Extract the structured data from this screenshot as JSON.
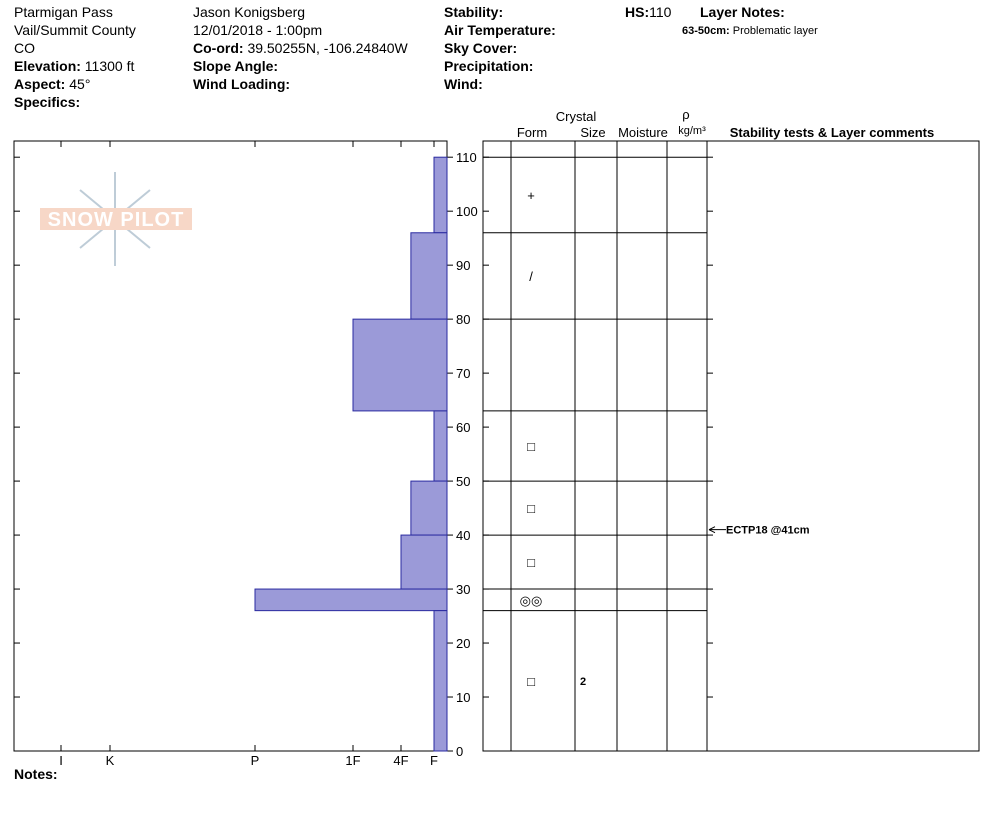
{
  "header": {
    "location": "Ptarmigan Pass",
    "area": "Vail/Summit County",
    "state": "CO",
    "elevation_label": "Elevation:",
    "elevation": "11300 ft",
    "aspect_label": "Aspect:",
    "aspect": "45°",
    "specifics_label": "Specifics:",
    "observer": "Jason Konigsberg",
    "datetime": "12/01/2018 - 1:00pm",
    "coord_label": "Co-ord:",
    "coord": "39.50255N, -106.24840W",
    "slope_label": "Slope Angle:",
    "wind_loading_label": "Wind Loading:",
    "stability_label": "Stability:",
    "air_temp_label": "Air Temperature:",
    "sky_label": "Sky Cover:",
    "precip_label": "Precipitation:",
    "wind_label": "Wind:",
    "hs_label": "HS:",
    "hs": 110,
    "layer_notes_label": "Layer Notes:",
    "layer_notes": [
      {
        "range": "63-50cm:",
        "text": "Problematic layer"
      }
    ]
  },
  "chart_data": {
    "type": "snow-profile",
    "xlim": [
      0,
      7
    ],
    "xticks": [
      {
        "value": 6,
        "label": "I"
      },
      {
        "value": 5,
        "label": "K"
      },
      {
        "value": 4,
        "label": "P"
      },
      {
        "value": 3,
        "label": "1F"
      },
      {
        "value": 2,
        "label": "4F"
      },
      {
        "value": 1,
        "label": "F"
      }
    ],
    "ylim": [
      0,
      113
    ],
    "yticks": [
      0,
      10,
      20,
      30,
      40,
      50,
      60,
      70,
      80,
      90,
      100,
      110
    ],
    "color": "#9b9ad8",
    "columns": {
      "crystal": "Crystal",
      "form": "Form",
      "size": "Size",
      "moisture": "Moisture",
      "rho": "ρ",
      "density": "kg/m³",
      "comments": "Stability tests & Layer comments"
    },
    "layers": [
      {
        "top": 110,
        "bottom": 96,
        "hardness": 1,
        "form": "+",
        "size": null
      },
      {
        "top": 96,
        "bottom": 80,
        "hardness": 1.7,
        "form": "/",
        "size": null
      },
      {
        "top": 80,
        "bottom": 63,
        "hardness": 3,
        "form": null,
        "size": null
      },
      {
        "top": 63,
        "bottom": 50,
        "hardness": 1,
        "form": "□",
        "size": null
      },
      {
        "top": 50,
        "bottom": 40,
        "hardness": 1.7,
        "form": "□",
        "size": null
      },
      {
        "top": 40,
        "bottom": 30,
        "hardness": 2,
        "form": "□",
        "size": null
      },
      {
        "top": 30,
        "bottom": 26,
        "hardness": 4,
        "form": "◎◎",
        "size": null
      },
      {
        "top": 26,
        "bottom": 0,
        "hardness": 1,
        "form": "□",
        "size": 2
      }
    ],
    "tests": [
      {
        "depth": 41,
        "label": "ECTP18 @41cm"
      }
    ]
  },
  "notes_label": "Notes:"
}
